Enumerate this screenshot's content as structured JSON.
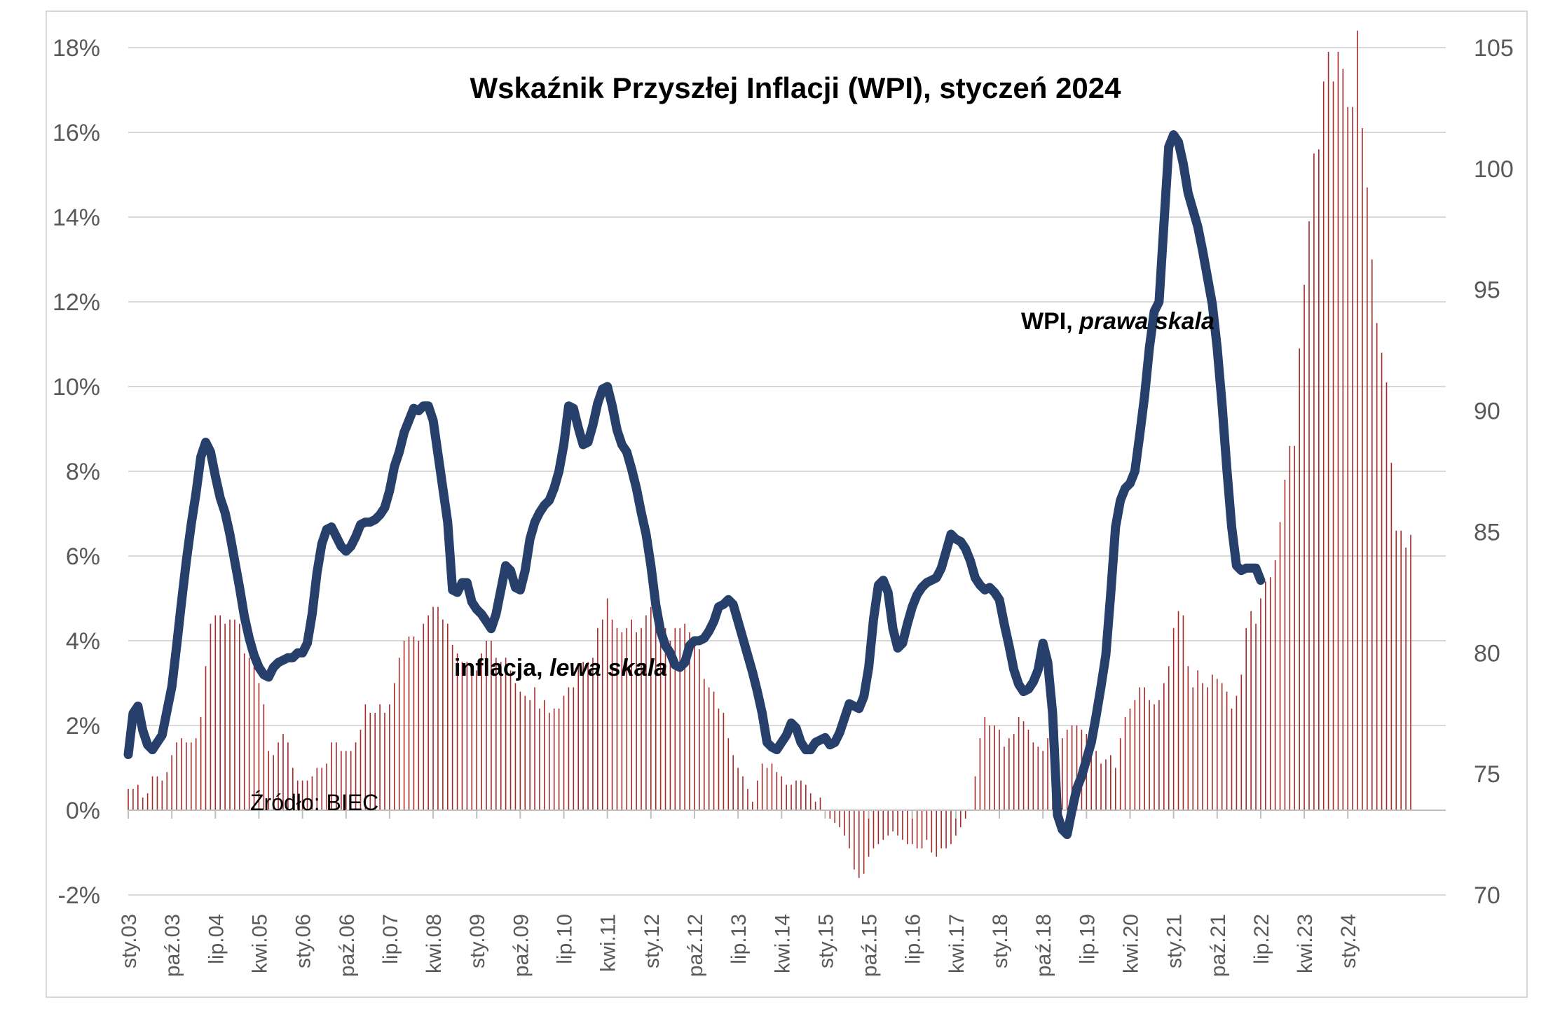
{
  "chart_data": {
    "type": "bar+line",
    "title": "Wskaźnik Przyszłej Inflacji (WPI), styczeń 2024",
    "source": "Źródło: BIEC",
    "y_left": {
      "ylim": [
        -2,
        18
      ],
      "ticks": [
        "-2%",
        "0%",
        "2%",
        "4%",
        "6%",
        "8%",
        "10%",
        "12%",
        "14%",
        "16%",
        "18%"
      ]
    },
    "y_right": {
      "ylim": [
        70,
        105
      ],
      "ticks": [
        "70",
        "75",
        "80",
        "85",
        "90",
        "95",
        "100",
        "105"
      ]
    },
    "x_ticks": [
      "sty.03",
      "paź.03",
      "lip.04",
      "kwi.05",
      "sty.06",
      "paź.06",
      "lip.07",
      "kwi.08",
      "sty.09",
      "paź.09",
      "lip.10",
      "kwi.11",
      "sty.12",
      "paź.12",
      "lip.13",
      "kwi.14",
      "sty.15",
      "paź.15",
      "lip.16",
      "kwi.17",
      "sty.18",
      "paź.18",
      "lip.19",
      "kwi.20",
      "sty.21",
      "paź.21",
      "lip.22",
      "kwi.23",
      "sty.24"
    ],
    "grid": true,
    "series": [
      {
        "name": "inflacja",
        "label_prefix": "inflacja, ",
        "label_suffix": "lewa skala",
        "type": "bar",
        "axis": "left",
        "color": "#a52a2a",
        "start": "2003-01",
        "values": [
          0.5,
          0.5,
          0.6,
          0.3,
          0.4,
          0.8,
          0.8,
          0.7,
          0.9,
          1.3,
          1.6,
          1.7,
          1.6,
          1.6,
          1.7,
          2.2,
          3.4,
          4.4,
          4.6,
          4.6,
          4.4,
          4.5,
          4.5,
          4.4,
          3.7,
          3.6,
          3.4,
          3.0,
          2.5,
          1.4,
          1.3,
          1.6,
          1.8,
          1.6,
          1.0,
          0.7,
          0.7,
          0.7,
          0.8,
          1.0,
          1.0,
          1.1,
          1.6,
          1.6,
          1.4,
          1.4,
          1.4,
          1.6,
          1.9,
          2.5,
          2.3,
          2.3,
          2.5,
          2.3,
          2.5,
          3.0,
          3.6,
          4.0,
          4.1,
          4.1,
          4.0,
          4.4,
          4.6,
          4.8,
          4.8,
          4.5,
          4.4,
          3.9,
          3.7,
          3.5,
          3.5,
          3.2,
          3.3,
          3.7,
          4.0,
          4.0,
          3.6,
          3.5,
          3.6,
          3.3,
          3.0,
          2.8,
          2.7,
          2.6,
          2.9,
          2.4,
          2.6,
          2.3,
          2.4,
          2.4,
          2.7,
          2.9,
          2.9,
          3.4,
          3.5,
          3.5,
          3.6,
          4.3,
          4.5,
          5.0,
          4.5,
          4.3,
          4.2,
          4.3,
          4.5,
          4.2,
          4.3,
          4.6,
          4.8,
          4.6,
          4.5,
          4.3,
          4.0,
          4.3,
          4.3,
          4.4,
          4.2,
          4.0,
          3.8,
          3.1,
          2.9,
          2.8,
          2.4,
          2.3,
          1.7,
          1.3,
          1.0,
          0.8,
          0.5,
          0.2,
          0.7,
          1.1,
          1.0,
          1.1,
          0.9,
          0.8,
          0.6,
          0.6,
          0.7,
          0.7,
          0.6,
          0.4,
          0.2,
          0.3,
          -0.1,
          -0.2,
          -0.3,
          -0.4,
          -0.6,
          -0.9,
          -1.4,
          -1.6,
          -1.5,
          -1.1,
          -0.9,
          -0.8,
          -0.7,
          -0.6,
          -0.5,
          -0.6,
          -0.7,
          -0.8,
          -0.8,
          -0.9,
          -0.9,
          -0.7,
          -1.0,
          -1.1,
          -0.9,
          -0.9,
          -0.8,
          -0.6,
          -0.4,
          -0.2,
          0.0,
          0.8,
          1.7,
          2.2,
          2.0,
          2.0,
          1.9,
          1.5,
          1.7,
          1.8,
          2.2,
          2.1,
          1.9,
          1.6,
          1.5,
          1.4,
          1.7,
          2.0,
          1.9,
          1.7,
          1.9,
          2.0,
          2.0,
          1.9,
          1.8,
          1.6,
          1.4,
          1.1,
          1.2,
          1.3,
          1.0,
          1.7,
          2.2,
          2.4,
          2.6,
          2.9,
          2.9,
          2.6,
          2.5,
          2.6,
          3.0,
          3.4,
          4.3,
          4.7,
          4.6,
          3.4,
          2.9,
          3.3,
          3.0,
          2.9,
          3.2,
          3.1,
          3.0,
          2.8,
          2.4,
          2.7,
          3.2,
          4.3,
          4.7,
          4.4,
          5.0,
          5.4,
          5.5,
          5.9,
          6.8,
          7.8,
          8.6,
          8.6,
          10.9,
          12.4,
          13.9,
          15.5,
          15.6,
          17.2,
          17.9,
          17.2,
          17.9,
          17.5,
          16.6,
          16.6,
          18.4,
          16.1,
          14.7,
          13.0,
          11.5,
          10.8,
          10.1,
          8.2,
          6.6,
          6.6,
          6.2,
          6.5
        ]
      },
      {
        "name": "WPI",
        "label_prefix": "WPI, ",
        "label_suffix": "prawa skala",
        "type": "line",
        "axis": "right",
        "color": "#273f6b",
        "start": "2003-01",
        "values": [
          75.8,
          77.5,
          77.8,
          76.8,
          76.2,
          76.0,
          76.3,
          76.6,
          77.6,
          78.6,
          80.3,
          82.1,
          83.8,
          85.3,
          86.6,
          88.1,
          88.7,
          88.3,
          87.3,
          86.4,
          85.8,
          84.9,
          83.8,
          82.7,
          81.5,
          80.6,
          79.9,
          79.4,
          79.1,
          79.0,
          79.4,
          79.6,
          79.7,
          79.8,
          79.8,
          80.0,
          80.0,
          80.4,
          81.6,
          83.3,
          84.5,
          85.1,
          85.2,
          84.8,
          84.4,
          84.2,
          84.4,
          84.8,
          85.3,
          85.4,
          85.4,
          85.5,
          85.7,
          86.0,
          86.7,
          87.7,
          88.3,
          89.1,
          89.6,
          90.1,
          90.0,
          90.2,
          90.2,
          89.6,
          88.2,
          86.8,
          85.4,
          82.6,
          82.5,
          82.9,
          82.9,
          82.1,
          81.8,
          81.6,
          81.3,
          81.0,
          81.6,
          82.6,
          83.6,
          83.4,
          82.7,
          82.6,
          83.4,
          84.7,
          85.4,
          85.8,
          86.1,
          86.3,
          86.8,
          87.5,
          88.6,
          90.2,
          90.1,
          89.3,
          88.6,
          88.7,
          89.4,
          90.3,
          90.9,
          91.0,
          90.2,
          89.2,
          88.6,
          88.3,
          87.6,
          86.8,
          85.8,
          84.9,
          83.6,
          82.0,
          80.9,
          80.3,
          80.0,
          79.5,
          79.4,
          79.6,
          80.3,
          80.5,
          80.5,
          80.6,
          80.9,
          81.3,
          81.9,
          82.0,
          82.2,
          82.0,
          81.3,
          80.6,
          79.9,
          79.2,
          78.4,
          77.5,
          76.3,
          76.1,
          76.0,
          76.3,
          76.6,
          77.1,
          76.9,
          76.3,
          76.0,
          76.0,
          76.3,
          76.4,
          76.5,
          76.2,
          76.3,
          76.7,
          77.3,
          77.9,
          77.8,
          77.7,
          78.2,
          79.4,
          81.4,
          82.8,
          83.0,
          82.5,
          81.0,
          80.2,
          80.4,
          81.2,
          81.9,
          82.4,
          82.7,
          82.9,
          83.0,
          83.1,
          83.5,
          84.2,
          84.9,
          84.7,
          84.6,
          84.3,
          83.8,
          83.1,
          82.8,
          82.6,
          82.7,
          82.5,
          82.2,
          81.2,
          80.3,
          79.3,
          78.7,
          78.4,
          78.5,
          78.8,
          79.3,
          80.4,
          79.6,
          77.5,
          73.3,
          72.7,
          72.5,
          73.5,
          74.4,
          74.9,
          75.6,
          76.3,
          77.4,
          78.6,
          79.9,
          82.4,
          85.2,
          86.3,
          86.8,
          87.0,
          87.5,
          89.0,
          90.6,
          92.6,
          94.1,
          94.5,
          97.7,
          100.9,
          101.4,
          101.1,
          100.2,
          99.0,
          98.3,
          97.6,
          96.6,
          95.5,
          94.4,
          92.6,
          90.3,
          87.6,
          85.2,
          83.6,
          83.4,
          83.5,
          83.5,
          83.5,
          83.0
        ]
      }
    ]
  }
}
